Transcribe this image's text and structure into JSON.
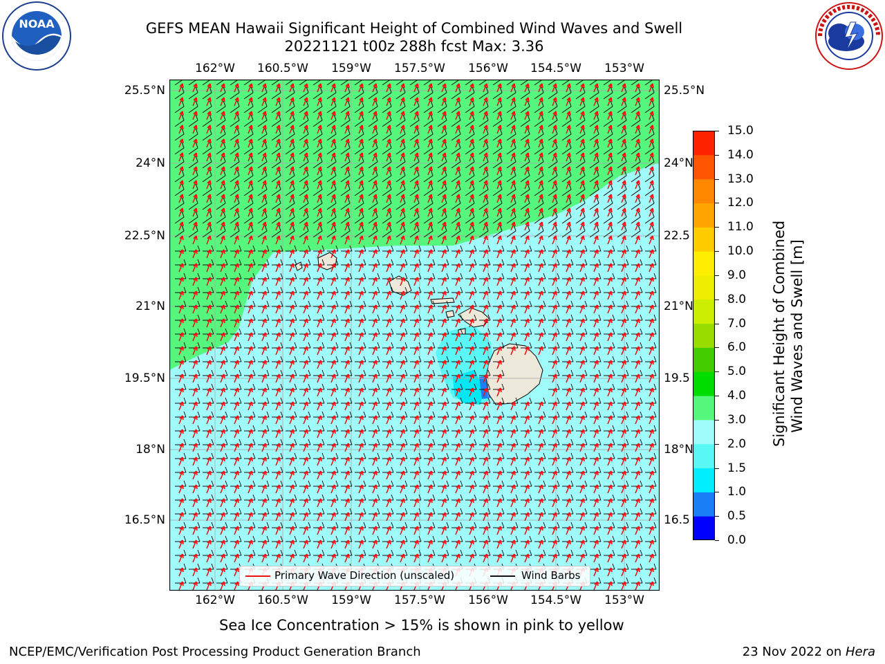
{
  "title": {
    "line1": "GEFS MEAN Hawaii Significant Height of Combined Wind Waves and Swell",
    "line2": "20221121 t00z 288h fcst   Max: 3.36"
  },
  "logos": {
    "left": {
      "text": "NOAA",
      "ring_text": "NATIONAL OCEANIC AND ATMOSPHERIC ADMINISTRATION · U.S. DEPARTMENT OF COMMERCE"
    },
    "right": {
      "ring_text": "NATIONAL WEATHER SERVICE"
    }
  },
  "map": {
    "lon_ticks": [
      "162°W",
      "160.5°W",
      "159°W",
      "157.5°W",
      "156°W",
      "154.5°W",
      "153°W"
    ],
    "lat_ticks": [
      "25.5°N",
      "24°N",
      "22.5°N",
      "21°N",
      "19.5°N",
      "18°N",
      "16.5°N"
    ],
    "lat_ticks_right": [
      "25.5°N",
      "24°N",
      "22.5",
      "21°N",
      "19.5",
      "18°N",
      "16.5"
    ],
    "colors": {
      "band_3_4": "#55f77c",
      "band_2_3": "#a0fcfb",
      "band_1_5_2": "#5af7f7",
      "band_1_1_5": "#00e8f4",
      "band_0_5_1": "#1a7ff7",
      "land": "#ede9da",
      "grid": "#aaaaaa",
      "arrow": "#ee1111",
      "barb": "#111111"
    }
  },
  "legend": {
    "arrow_label": "Primary Wave Direction (unscaled)",
    "barb_label": "Wind Barbs"
  },
  "colorbar": {
    "title_line1": "Significant Height of Combined",
    "title_line2": "Wind Waves and Swell [m]",
    "labels": [
      "0.0",
      "0.5",
      "1.0",
      "1.5",
      "2.0",
      "3.0",
      "4.0",
      "5.0",
      "6.0",
      "7.0",
      "8.0",
      "9.0",
      "10.0",
      "11.0",
      "12.0",
      "13.0",
      "14.0",
      "15.0"
    ],
    "colors": [
      "#0000ff",
      "#1a7ff7",
      "#00eeff",
      "#5af7f7",
      "#a0fcfb",
      "#55f77c",
      "#00dd00",
      "#44cc00",
      "#99dd00",
      "#ccee00",
      "#eeee00",
      "#ffee00",
      "#ffcc00",
      "#ffa500",
      "#ff8800",
      "#ff5500",
      "#ff2200",
      "#ff0000"
    ]
  },
  "note": "Sea Ice Concentration > 15% is shown in pink to yellow",
  "footer": {
    "left": "NCEP/EMC/Verification Post Processing Product Generation Branch",
    "right_date": "23 Nov 2022 on ",
    "right_host": "Hera"
  }
}
